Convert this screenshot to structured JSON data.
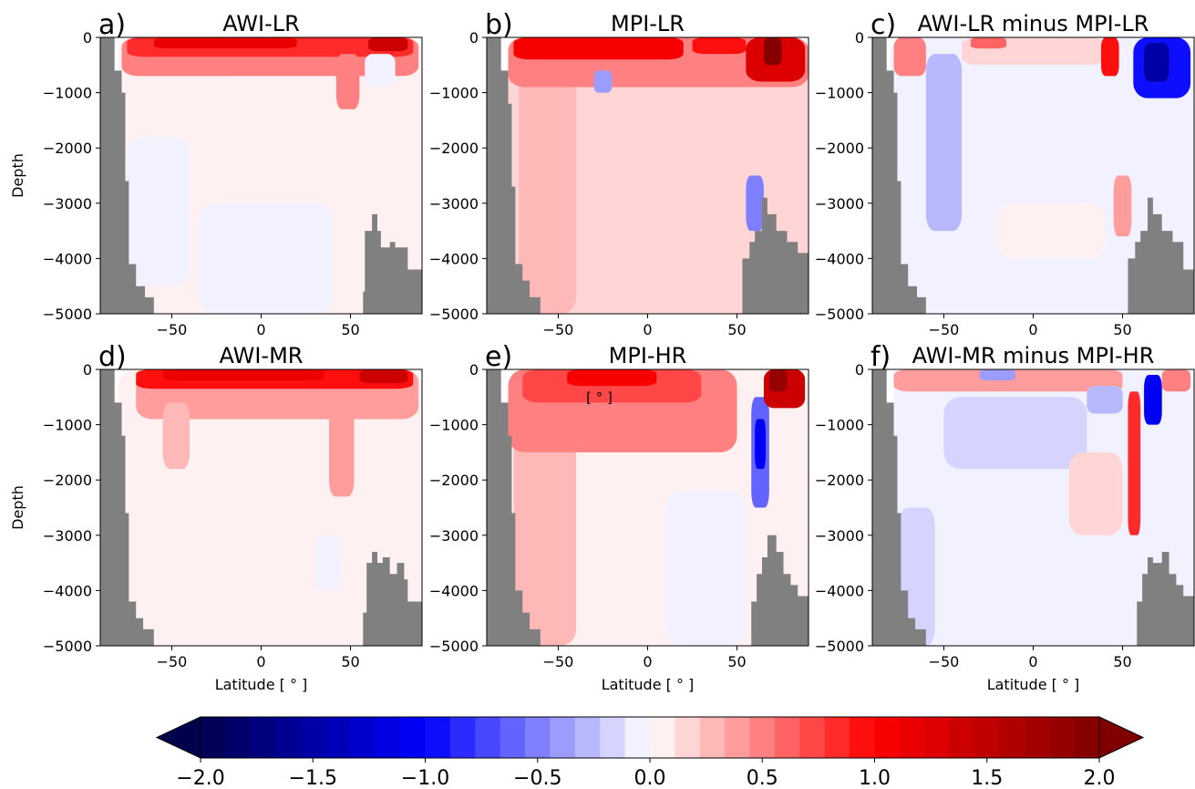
{
  "chart_data": [
    {
      "type": "heatmap",
      "letter": "a)",
      "title": "AWI-LR",
      "ylabel": "Depth",
      "xlabel": "",
      "xlim": [
        -90,
        90
      ],
      "ylim": [
        -5000,
        0
      ],
      "xticks": [
        -50,
        0,
        50
      ],
      "yticks": [
        0,
        -1000,
        -2000,
        -3000,
        -4000,
        -5000
      ],
      "features": [
        {
          "x0": -80,
          "x1": 90,
          "y0": -5000,
          "y1": 0,
          "v": 0.06
        },
        {
          "x0": -75,
          "x1": -40,
          "y0": -4500,
          "y1": -1800,
          "v": -0.05
        },
        {
          "x0": -35,
          "x1": 40,
          "y0": -5000,
          "y1": -3000,
          "v": -0.04
        },
        {
          "x0": -78,
          "x1": 88,
          "y0": -700,
          "y1": 0,
          "v": 0.45
        },
        {
          "x0": -75,
          "x1": 85,
          "y0": -350,
          "y1": 0,
          "v": 0.85
        },
        {
          "x0": -60,
          "x1": 20,
          "y0": -200,
          "y1": 0,
          "v": 1.15
        },
        {
          "x0": 42,
          "x1": 55,
          "y0": -1300,
          "y1": -300,
          "v": 0.55
        },
        {
          "x0": 60,
          "x1": 82,
          "y0": -250,
          "y1": 0,
          "v": 1.4
        },
        {
          "x0": 58,
          "x1": 75,
          "y0": -900,
          "y1": -300,
          "v": -0.08
        }
      ],
      "land": [
        {
          "x": -90,
          "top": 0
        },
        {
          "x": -82,
          "top": -600
        },
        {
          "x": -78,
          "top": -1000
        },
        {
          "x": -76,
          "top": -2600
        },
        {
          "x": -74,
          "top": -4100
        },
        {
          "x": -70,
          "top": -4500
        },
        {
          "x": -65,
          "top": -4700
        },
        {
          "x": -60,
          "top": -5000
        }
      ],
      "land_right": [
        {
          "x": 55,
          "top": -5000
        },
        {
          "x": 57,
          "top": -4600
        },
        {
          "x": 58,
          "top": -3500
        },
        {
          "x": 62,
          "top": -3200
        },
        {
          "x": 65,
          "top": -3500
        },
        {
          "x": 67,
          "top": -3800
        },
        {
          "x": 72,
          "top": -3700
        },
        {
          "x": 75,
          "top": -3800
        },
        {
          "x": 80,
          "top": -3800
        },
        {
          "x": 82,
          "top": -4200
        },
        {
          "x": 90,
          "top": -4200
        }
      ]
    },
    {
      "type": "heatmap",
      "letter": "b)",
      "title": "MPI-LR",
      "ylabel": "",
      "xlabel": "",
      "xlim": [
        -90,
        90
      ],
      "ylim": [
        -5000,
        0
      ],
      "xticks": [
        -50,
        0,
        50
      ],
      "yticks": [
        0,
        -1000,
        -2000,
        -3000,
        -4000,
        -5000
      ],
      "features": [
        {
          "x0": -78,
          "x1": 90,
          "y0": -5000,
          "y1": 0,
          "v": 0.12
        },
        {
          "x0": -72,
          "x1": -40,
          "y0": -5000,
          "y1": -500,
          "v": 0.25
        },
        {
          "x0": -30,
          "x1": 30,
          "y0": -3000,
          "y1": -1500,
          "v": 0.2
        },
        {
          "x0": 55,
          "x1": 65,
          "y0": -3500,
          "y1": -2500,
          "v": -0.45
        },
        {
          "x0": -78,
          "x1": 90,
          "y0": -900,
          "y1": 0,
          "v": 0.55
        },
        {
          "x0": -75,
          "x1": 20,
          "y0": -400,
          "y1": 0,
          "v": 1.0
        },
        {
          "x0": -30,
          "x1": -20,
          "y0": -1000,
          "y1": -600,
          "v": -0.35
        },
        {
          "x0": 55,
          "x1": 88,
          "y0": -800,
          "y1": 0,
          "v": 1.3
        },
        {
          "x0": 65,
          "x1": 75,
          "y0": -500,
          "y1": 0,
          "v": 1.95
        },
        {
          "x0": 25,
          "x1": 55,
          "y0": -300,
          "y1": 0,
          "v": 0.95
        }
      ],
      "land": [
        {
          "x": -90,
          "top": 0
        },
        {
          "x": -82,
          "top": -600
        },
        {
          "x": -78,
          "top": -1200
        },
        {
          "x": -76,
          "top": -2700
        },
        {
          "x": -74,
          "top": -4100
        },
        {
          "x": -70,
          "top": -4400
        },
        {
          "x": -66,
          "top": -4700
        },
        {
          "x": -60,
          "top": -5000
        }
      ],
      "land_right": [
        {
          "x": 52,
          "top": -5000
        },
        {
          "x": 53,
          "top": -4000
        },
        {
          "x": 57,
          "top": -3700
        },
        {
          "x": 60,
          "top": -3500
        },
        {
          "x": 64,
          "top": -2900
        },
        {
          "x": 67,
          "top": -3200
        },
        {
          "x": 72,
          "top": -3500
        },
        {
          "x": 78,
          "top": -3700
        },
        {
          "x": 84,
          "top": -3900
        },
        {
          "x": 90,
          "top": -4000
        }
      ]
    },
    {
      "type": "heatmap",
      "letter": "c)",
      "title": "AWI-LR minus MPI-LR",
      "ylabel": "",
      "xlabel": "",
      "xlim": [
        -90,
        90
      ],
      "ylim": [
        -5000,
        0
      ],
      "xticks": [
        -50,
        0,
        50
      ],
      "yticks": [
        0,
        -1000,
        -2000,
        -3000,
        -4000,
        -5000
      ],
      "features": [
        {
          "x0": -80,
          "x1": 90,
          "y0": -5000,
          "y1": 0,
          "v": -0.05
        },
        {
          "x0": -60,
          "x1": -40,
          "y0": -3500,
          "y1": -300,
          "v": -0.25
        },
        {
          "x0": -20,
          "x1": 40,
          "y0": -4000,
          "y1": -3000,
          "v": 0.03
        },
        {
          "x0": 45,
          "x1": 55,
          "y0": -3600,
          "y1": -2500,
          "v": 0.4
        },
        {
          "x0": -78,
          "x1": -60,
          "y0": -700,
          "y1": 0,
          "v": 0.5
        },
        {
          "x0": -40,
          "x1": 40,
          "y0": -500,
          "y1": 0,
          "v": 0.2
        },
        {
          "x0": 38,
          "x1": 48,
          "y0": -700,
          "y1": 0,
          "v": 0.9
        },
        {
          "x0": 56,
          "x1": 88,
          "y0": -1100,
          "y1": 0,
          "v": -0.95
        },
        {
          "x0": 62,
          "x1": 76,
          "y0": -800,
          "y1": -100,
          "v": -1.55
        },
        {
          "x0": -35,
          "x1": -15,
          "y0": -200,
          "y1": 0,
          "v": 0.65
        }
      ],
      "land": [
        {
          "x": -90,
          "top": 0
        },
        {
          "x": -82,
          "top": -600
        },
        {
          "x": -78,
          "top": -1000
        },
        {
          "x": -76,
          "top": -2600
        },
        {
          "x": -74,
          "top": -4100
        },
        {
          "x": -70,
          "top": -4500
        },
        {
          "x": -65,
          "top": -4700
        },
        {
          "x": -60,
          "top": -5000
        }
      ],
      "land_right": [
        {
          "x": 52,
          "top": -5000
        },
        {
          "x": 53,
          "top": -4000
        },
        {
          "x": 57,
          "top": -3700
        },
        {
          "x": 60,
          "top": -3500
        },
        {
          "x": 64,
          "top": -2900
        },
        {
          "x": 67,
          "top": -3200
        },
        {
          "x": 72,
          "top": -3500
        },
        {
          "x": 78,
          "top": -3700
        },
        {
          "x": 84,
          "top": -4200
        },
        {
          "x": 90,
          "top": -4200
        }
      ]
    },
    {
      "type": "heatmap",
      "letter": "d)",
      "title": "AWI-MR",
      "ylabel": "Depth",
      "xlabel": "Latitude [$^\\circ$]",
      "xlim": [
        -90,
        90
      ],
      "ylim": [
        -5000,
        0
      ],
      "xticks": [
        -50,
        0,
        50
      ],
      "yticks": [
        0,
        -1000,
        -2000,
        -3000,
        -4000,
        -5000
      ],
      "features": [
        {
          "x0": -80,
          "x1": 90,
          "y0": -5000,
          "y1": 0,
          "v": 0.08
        },
        {
          "x0": 30,
          "x1": 45,
          "y0": -4000,
          "y1": -3000,
          "v": -0.05
        },
        {
          "x0": -70,
          "x1": 88,
          "y0": -900,
          "y1": 0,
          "v": 0.4
        },
        {
          "x0": -55,
          "x1": -40,
          "y0": -1800,
          "y1": -600,
          "v": 0.3
        },
        {
          "x0": 38,
          "x1": 52,
          "y0": -2300,
          "y1": -600,
          "v": 0.35
        },
        {
          "x0": -70,
          "x1": 85,
          "y0": -350,
          "y1": 0,
          "v": 0.9
        },
        {
          "x0": -55,
          "x1": 35,
          "y0": -200,
          "y1": 0,
          "v": 1.2
        },
        {
          "x0": 55,
          "x1": 82,
          "y0": -250,
          "y1": 0,
          "v": 1.35
        }
      ],
      "land": [
        {
          "x": -90,
          "top": 0
        },
        {
          "x": -82,
          "top": -600
        },
        {
          "x": -78,
          "top": -1200
        },
        {
          "x": -76,
          "top": -2600
        },
        {
          "x": -74,
          "top": -4200
        },
        {
          "x": -70,
          "top": -4500
        },
        {
          "x": -66,
          "top": -4700
        },
        {
          "x": -60,
          "top": -5000
        }
      ],
      "land_right": [
        {
          "x": 56,
          "top": -5000
        },
        {
          "x": 57,
          "top": -4400
        },
        {
          "x": 59,
          "top": -3500
        },
        {
          "x": 62,
          "top": -3300
        },
        {
          "x": 65,
          "top": -3500
        },
        {
          "x": 68,
          "top": -3400
        },
        {
          "x": 72,
          "top": -3700
        },
        {
          "x": 76,
          "top": -3500
        },
        {
          "x": 80,
          "top": -3800
        },
        {
          "x": 82,
          "top": -4200
        },
        {
          "x": 90,
          "top": -4200
        }
      ]
    },
    {
      "type": "heatmap",
      "letter": "e)",
      "title": "MPI-HR",
      "annotation": "[$^\\circ$]",
      "ylabel": "",
      "xlabel": "Latitude [$^\\circ$]",
      "xlim": [
        -90,
        90
      ],
      "ylim": [
        -5000,
        0
      ],
      "xticks": [
        -50,
        0,
        50
      ],
      "yticks": [
        0,
        -1000,
        -2000,
        -3000,
        -4000,
        -5000
      ],
      "features": [
        {
          "x0": -78,
          "x1": 90,
          "y0": -5000,
          "y1": 0,
          "v": 0.08
        },
        {
          "x0": -75,
          "x1": -40,
          "y0": -5000,
          "y1": -1000,
          "v": 0.3
        },
        {
          "x0": 10,
          "x1": 55,
          "y0": -5000,
          "y1": -2200,
          "v": -0.06
        },
        {
          "x0": -78,
          "x1": 50,
          "y0": -1500,
          "y1": 0,
          "v": 0.45
        },
        {
          "x0": -70,
          "x1": 30,
          "y0": -600,
          "y1": 0,
          "v": 0.75
        },
        {
          "x0": -45,
          "x1": 5,
          "y0": -300,
          "y1": 0,
          "v": 1.1
        },
        {
          "x0": 58,
          "x1": 68,
          "y0": -2500,
          "y1": -500,
          "v": -0.6
        },
        {
          "x0": 60,
          "x1": 66,
          "y0": -1800,
          "y1": -900,
          "v": -1.05
        },
        {
          "x0": 65,
          "x1": 88,
          "y0": -700,
          "y1": 0,
          "v": 1.4
        },
        {
          "x0": 68,
          "x1": 78,
          "y0": -400,
          "y1": 0,
          "v": 1.8
        }
      ],
      "land": [
        {
          "x": -90,
          "top": 0
        },
        {
          "x": -82,
          "top": -600
        },
        {
          "x": -78,
          "top": -1200
        },
        {
          "x": -76,
          "top": -2600
        },
        {
          "x": -74,
          "top": -4000
        },
        {
          "x": -70,
          "top": -4400
        },
        {
          "x": -66,
          "top": -4700
        },
        {
          "x": -60,
          "top": -5000
        }
      ],
      "land_right": [
        {
          "x": 56,
          "top": -5000
        },
        {
          "x": 58,
          "top": -4200
        },
        {
          "x": 61,
          "top": -3700
        },
        {
          "x": 64,
          "top": -3400
        },
        {
          "x": 67,
          "top": -3000
        },
        {
          "x": 72,
          "top": -3300
        },
        {
          "x": 76,
          "top": -3700
        },
        {
          "x": 80,
          "top": -3900
        },
        {
          "x": 84,
          "top": -4100
        },
        {
          "x": 90,
          "top": -4200
        }
      ]
    },
    {
      "type": "heatmap",
      "letter": "f)",
      "title": "AWI-MR minus MPI-HR",
      "ylabel": "",
      "xlabel": "Latitude [$^\\circ$]",
      "xlim": [
        -90,
        90
      ],
      "ylim": [
        -5000,
        0
      ],
      "xticks": [
        -50,
        0,
        50
      ],
      "yticks": [
        0,
        -1000,
        -2000,
        -3000,
        -4000,
        -5000
      ],
      "features": [
        {
          "x0": -78,
          "x1": 90,
          "y0": -5000,
          "y1": 0,
          "v": -0.05
        },
        {
          "x0": -75,
          "x1": -55,
          "y0": -5000,
          "y1": -2500,
          "v": -0.2
        },
        {
          "x0": -50,
          "x1": 30,
          "y0": -1800,
          "y1": -500,
          "v": -0.12
        },
        {
          "x0": 20,
          "x1": 50,
          "y0": -3000,
          "y1": -1500,
          "v": 0.15
        },
        {
          "x0": -78,
          "x1": 50,
          "y0": -400,
          "y1": 0,
          "v": 0.35
        },
        {
          "x0": -30,
          "x1": -10,
          "y0": -200,
          "y1": 0,
          "v": -0.35
        },
        {
          "x0": 30,
          "x1": 50,
          "y0": -800,
          "y1": -300,
          "v": -0.3
        },
        {
          "x0": 53,
          "x1": 60,
          "y0": -3000,
          "y1": -400,
          "v": 0.8
        },
        {
          "x0": 62,
          "x1": 72,
          "y0": -1000,
          "y1": -100,
          "v": -1.05
        },
        {
          "x0": 72,
          "x1": 88,
          "y0": -400,
          "y1": 0,
          "v": 0.55
        }
      ],
      "land": [
        {
          "x": -90,
          "top": 0
        },
        {
          "x": -82,
          "top": -600
        },
        {
          "x": -78,
          "top": -1200
        },
        {
          "x": -76,
          "top": -2600
        },
        {
          "x": -74,
          "top": -4000
        },
        {
          "x": -70,
          "top": -4500
        },
        {
          "x": -66,
          "top": -4700
        },
        {
          "x": -60,
          "top": -5000
        }
      ],
      "land_right": [
        {
          "x": 56,
          "top": -5000
        },
        {
          "x": 58,
          "top": -4200
        },
        {
          "x": 61,
          "top": -3700
        },
        {
          "x": 64,
          "top": -3400
        },
        {
          "x": 67,
          "top": -3500
        },
        {
          "x": 72,
          "top": -3300
        },
        {
          "x": 76,
          "top": -3700
        },
        {
          "x": 80,
          "top": -3900
        },
        {
          "x": 84,
          "top": -4100
        },
        {
          "x": 90,
          "top": -4200
        }
      ]
    }
  ],
  "colorbar": {
    "min": -2.0,
    "max": 2.0,
    "levels": 36,
    "ticks": [
      "−2.0",
      "−1.5",
      "−1.0",
      "−0.5",
      "0.0",
      "0.5",
      "1.0",
      "1.5",
      "2.0"
    ],
    "tick_values": [
      -2.0,
      -1.5,
      -1.0,
      -0.5,
      0.0,
      0.5,
      1.0,
      1.5,
      2.0
    ],
    "cmap": "seismic",
    "extend": "both"
  },
  "colors": {
    "land": "#808080",
    "cmap_low": "#00004c",
    "cmap_mid": "#ffffff",
    "cmap_high": "#800000"
  }
}
